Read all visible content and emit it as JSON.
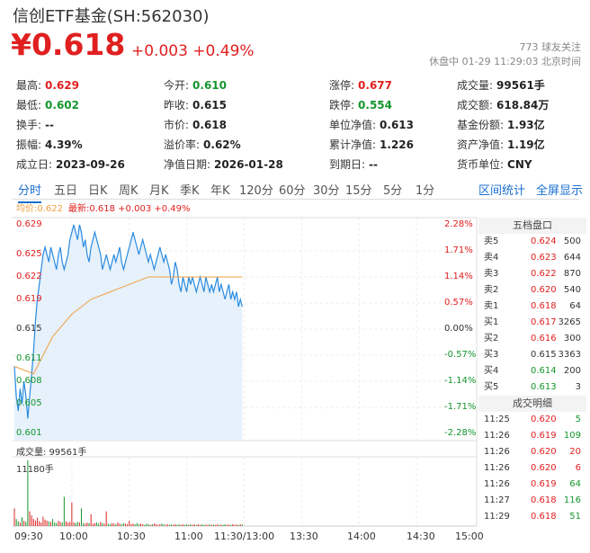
{
  "header": {
    "title": "信创ETF基金(SH:562030)",
    "price": "¥0.618",
    "change": "+0.003 +0.49%",
    "followers": "773 球友关注",
    "status": "休盘中 01-29 11:29:03 北京时间"
  },
  "stats": [
    {
      "label": "最高:",
      "value": "0.629",
      "color": "up"
    },
    {
      "label": "今开:",
      "value": "0.610",
      "color": "down"
    },
    {
      "label": "涨停:",
      "value": "0.677",
      "color": "up"
    },
    {
      "label": "成交量:",
      "value": "99561手",
      "color": ""
    },
    {
      "label": "最低:",
      "value": "0.602",
      "color": "down"
    },
    {
      "label": "昨收:",
      "value": "0.615",
      "color": ""
    },
    {
      "label": "跌停:",
      "value": "0.554",
      "color": "down"
    },
    {
      "label": "成交额:",
      "value": "618.84万",
      "color": ""
    },
    {
      "label": "换手:",
      "value": "--",
      "color": ""
    },
    {
      "label": "市价:",
      "value": "0.618",
      "color": ""
    },
    {
      "label": "单位净值:",
      "value": "0.613",
      "color": ""
    },
    {
      "label": "基金份额:",
      "value": "1.93亿",
      "color": ""
    },
    {
      "label": "振幅:",
      "value": "4.39%",
      "color": ""
    },
    {
      "label": "溢价率:",
      "value": "0.62%",
      "color": ""
    },
    {
      "label": "累计净值:",
      "value": "1.226",
      "color": ""
    },
    {
      "label": "资产净值:",
      "value": "1.19亿",
      "color": ""
    },
    {
      "label": "成立日:",
      "value": "2023-09-26",
      "color": ""
    },
    {
      "label": "净值日期:",
      "value": "2026-01-28",
      "color": ""
    },
    {
      "label": "到期日:",
      "value": "--",
      "color": ""
    },
    {
      "label": "货币单位:",
      "value": "CNY",
      "color": ""
    }
  ],
  "tabs": [
    "分时",
    "五日",
    "日K",
    "周K",
    "月K",
    "季K",
    "年K",
    "120分",
    "60分",
    "30分",
    "15分",
    "5分",
    "1分"
  ],
  "active_tab": "分时",
  "tab_actions": [
    "区间统计",
    "全屏显示"
  ],
  "legend": {
    "avg": "均价:0.622",
    "last": "最新:0.618 +0.003 +0.49%"
  },
  "chart_data": {
    "type": "line",
    "y_left_ticks": [
      "0.629",
      "0.625",
      "0.622",
      "0.619",
      "0.615",
      "0.611",
      "0.608",
      "0.605",
      "0.601"
    ],
    "y_right_ticks": [
      "2.28%",
      "1.71%",
      "1.14%",
      "0.57%",
      "0.00%",
      "-0.57%",
      "-1.14%",
      "-1.71%",
      "-2.28%"
    ],
    "ylim": [
      0.601,
      0.629
    ],
    "prev_close": 0.615,
    "x_ticks": [
      "09:30",
      "10:00",
      "10:30",
      "11:00",
      "11:30/13:00",
      "13:30",
      "14:00",
      "14:30",
      "15:00"
    ],
    "series": [
      {
        "name": "最新",
        "color": "#2a8be0",
        "x": [
          0,
          1,
          2,
          3,
          4,
          5,
          6,
          7,
          8,
          9,
          10,
          11,
          12,
          13,
          14,
          15,
          16,
          17,
          18,
          19,
          20,
          21,
          22,
          23,
          24,
          25,
          26,
          27,
          28,
          29,
          30,
          31,
          32,
          33,
          34,
          35,
          36,
          37,
          38,
          39,
          40,
          41,
          42,
          43,
          44,
          45,
          46,
          47,
          48,
          49,
          50,
          51,
          52,
          53,
          54,
          55,
          56,
          57,
          58,
          59,
          60,
          61,
          62,
          63,
          64,
          65,
          66,
          67,
          68,
          69,
          70,
          71,
          72,
          73,
          74,
          75,
          76,
          77,
          78,
          79,
          80,
          81,
          82,
          83,
          84,
          85,
          86,
          87,
          88,
          89,
          90,
          91,
          92,
          93,
          94,
          95,
          96,
          97,
          98,
          99,
          100,
          101,
          102,
          103,
          104,
          105,
          106,
          107,
          108,
          109,
          110,
          111,
          112,
          113,
          114,
          115,
          116,
          117,
          118,
          119
        ],
        "values": [
          0.61,
          0.606,
          0.604,
          0.607,
          0.605,
          0.608,
          0.606,
          0.603,
          0.606,
          0.609,
          0.612,
          0.616,
          0.619,
          0.621,
          0.623,
          0.625,
          0.626,
          0.625,
          0.624,
          0.626,
          0.625,
          0.624,
          0.623,
          0.625,
          0.626,
          0.624,
          0.623,
          0.624,
          0.625,
          0.627,
          0.628,
          0.629,
          0.628,
          0.627,
          0.629,
          0.628,
          0.626,
          0.627,
          0.625,
          0.624,
          0.626,
          0.627,
          0.628,
          0.627,
          0.626,
          0.625,
          0.623,
          0.624,
          0.625,
          0.624,
          0.623,
          0.624,
          0.625,
          0.624,
          0.625,
          0.626,
          0.624,
          0.623,
          0.624,
          0.625,
          0.626,
          0.627,
          0.628,
          0.627,
          0.626,
          0.625,
          0.626,
          0.627,
          0.626,
          0.625,
          0.624,
          0.625,
          0.624,
          0.623,
          0.624,
          0.625,
          0.626,
          0.625,
          0.624,
          0.625,
          0.624,
          0.623,
          0.621,
          0.622,
          0.624,
          0.623,
          0.621,
          0.62,
          0.622,
          0.621,
          0.62,
          0.622,
          0.621,
          0.622,
          0.621,
          0.62,
          0.621,
          0.622,
          0.621,
          0.62,
          0.622,
          0.621,
          0.62,
          0.621,
          0.62,
          0.621,
          0.622,
          0.62,
          0.621,
          0.62,
          0.619,
          0.62,
          0.621,
          0.619,
          0.62,
          0.619,
          0.62,
          0.618,
          0.619,
          0.618
        ]
      },
      {
        "name": "均价",
        "color": "#f0a040",
        "x": [
          0,
          10,
          20,
          30,
          40,
          50,
          60,
          70,
          80,
          90,
          100,
          110,
          119
        ],
        "values": [
          0.61,
          0.609,
          0.614,
          0.617,
          0.619,
          0.62,
          0.621,
          0.622,
          0.622,
          0.622,
          0.622,
          0.622,
          0.622
        ]
      }
    ],
    "volume_label": "成交量: 99561手",
    "volume_max_label": "11180手",
    "volume_max": 11180,
    "volume": [
      3000,
      1200,
      800,
      600,
      1500,
      900,
      700,
      11180,
      2500,
      1800,
      1200,
      900,
      1400,
      800,
      600,
      1600,
      1100,
      900,
      800,
      700,
      1200,
      600,
      500,
      900,
      700,
      600,
      5000,
      800,
      600,
      700,
      4000,
      600,
      500,
      700,
      600,
      3000,
      500,
      400,
      600,
      500,
      2000,
      400,
      500,
      600,
      400,
      700,
      500,
      400,
      2500,
      400,
      300,
      500,
      400,
      300,
      600,
      400,
      300,
      500,
      400,
      300,
      900,
      300,
      400,
      300,
      500,
      300,
      400,
      300,
      200,
      400,
      300,
      200,
      300,
      400,
      300,
      200,
      300,
      400,
      300,
      200,
      300,
      200,
      300,
      200,
      300,
      200,
      300,
      200,
      300,
      200,
      300,
      200,
      300,
      200,
      300,
      200,
      300,
      200,
      300,
      200,
      250,
      200,
      300,
      200,
      250,
      200,
      300,
      200,
      250,
      200,
      300,
      200,
      250,
      200,
      300,
      200,
      250,
      200,
      300,
      250
    ],
    "volume_colors": "mixed"
  },
  "order_book": {
    "title": "五档盘口",
    "rows": [
      {
        "label": "卖5",
        "price": "0.624",
        "qty": "500",
        "color": "up"
      },
      {
        "label": "卖4",
        "price": "0.623",
        "qty": "644",
        "color": "up"
      },
      {
        "label": "卖3",
        "price": "0.622",
        "qty": "870",
        "color": "up"
      },
      {
        "label": "卖2",
        "price": "0.620",
        "qty": "540",
        "color": "up"
      },
      {
        "label": "卖1",
        "price": "0.618",
        "qty": "64",
        "color": "up"
      },
      {
        "label": "买1",
        "price": "0.617",
        "qty": "3265",
        "color": "up"
      },
      {
        "label": "买2",
        "price": "0.616",
        "qty": "300",
        "color": "up"
      },
      {
        "label": "买3",
        "price": "0.615",
        "qty": "3363",
        "color": ""
      },
      {
        "label": "买4",
        "price": "0.614",
        "qty": "200",
        "color": "down"
      },
      {
        "label": "买5",
        "price": "0.613",
        "qty": "3",
        "color": "down"
      }
    ]
  },
  "trades": {
    "title": "成交明细",
    "rows": [
      {
        "time": "11:25",
        "price": "0.620",
        "qty": "5",
        "color": "down"
      },
      {
        "time": "11:26",
        "price": "0.619",
        "qty": "109",
        "color": "down"
      },
      {
        "time": "11:26",
        "price": "0.620",
        "qty": "20",
        "color": "up"
      },
      {
        "time": "11:26",
        "price": "0.620",
        "qty": "6",
        "color": "up"
      },
      {
        "time": "11:26",
        "price": "0.619",
        "qty": "64",
        "color": "down"
      },
      {
        "time": "11:27",
        "price": "0.618",
        "qty": "116",
        "color": "down"
      },
      {
        "time": "11:29",
        "price": "0.618",
        "qty": "51",
        "color": "down"
      }
    ]
  }
}
